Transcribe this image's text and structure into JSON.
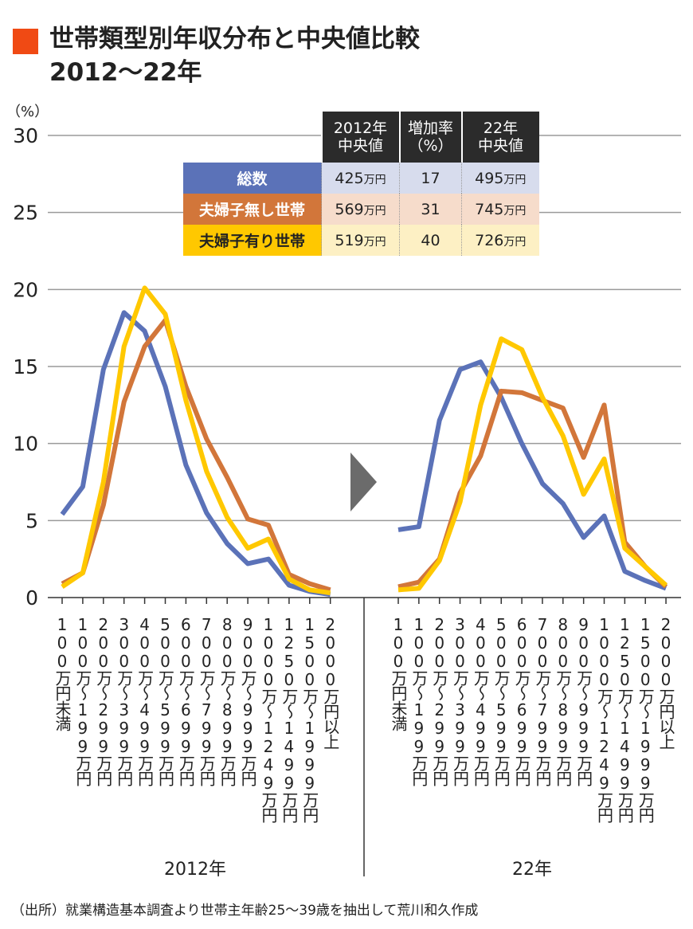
{
  "title_line1": "世帯類型別年収分布と中央値比較",
  "title_line2": "2012～22年",
  "source": "（出所）就業構造基本調査より世帯主年齢25～39歳を抽出して荒川和久作成",
  "colors": {
    "accent": "#f04a14",
    "total": "#5b72b8",
    "no_child": "#d2763a",
    "with_child": "#ffc800",
    "arrow": "#6b6b6b"
  },
  "table": {
    "headers": [
      [
        "2012年",
        "中央値"
      ],
      [
        "増加率",
        "（%）"
      ],
      [
        "22年",
        "中央値"
      ]
    ],
    "rows": [
      {
        "label": "総数",
        "v2012": "425",
        "rate": "17",
        "v2022": "495",
        "unit": "万円",
        "label_color": "#5b72b8",
        "bg": "#d7dced",
        "text": "#fff"
      },
      {
        "label": "夫婦子無し世帯",
        "v2012": "569",
        "rate": "31",
        "v2022": "745",
        "unit": "万円",
        "label_color": "#d2763a",
        "bg": "#f6dccb",
        "text": "#fff"
      },
      {
        "label": "夫婦子有り世帯",
        "v2012": "519",
        "rate": "40",
        "v2022": "726",
        "unit": "万円",
        "label_color": "#ffc800",
        "bg": "#fdf0c4",
        "text": "#222"
      }
    ]
  },
  "chart_data": {
    "type": "line",
    "ylabel": "（%）",
    "ylim": [
      0,
      30
    ],
    "yticks": [
      0,
      5,
      10,
      15,
      20,
      25,
      30
    ],
    "grid": true,
    "categories": [
      "100万円未満",
      "100万～199万円",
      "200万～299万円",
      "300万～399万円",
      "400万～499万円",
      "500万～599万円",
      "600万～699万円",
      "700万～799万円",
      "800万～899万円",
      "900万～999万円",
      "1000万～1249万円",
      "1250万～1499万円",
      "1500万～1999万円",
      "2000万円以上"
    ],
    "panels": [
      {
        "label": "2012年",
        "series": [
          {
            "name": "総数",
            "values": [
              5.4,
              7.2,
              14.8,
              18.5,
              17.3,
              13.7,
              8.6,
              5.5,
              3.5,
              2.2,
              2.5,
              0.8,
              0.4,
              0.2
            ]
          },
          {
            "name": "夫婦子無し世帯",
            "values": [
              0.9,
              1.6,
              6.0,
              12.7,
              16.3,
              18.0,
              13.7,
              10.3,
              7.8,
              5.1,
              4.7,
              1.5,
              0.9,
              0.5
            ]
          },
          {
            "name": "夫婦子有り世帯",
            "values": [
              0.7,
              1.6,
              7.5,
              16.3,
              20.1,
              18.4,
              12.8,
              8.2,
              5.2,
              3.2,
              3.8,
              1.2,
              0.5,
              0.3
            ]
          }
        ]
      },
      {
        "label": "22年",
        "series": [
          {
            "name": "総数",
            "values": [
              4.4,
              4.6,
              11.5,
              14.8,
              15.3,
              13.0,
              10.0,
              7.4,
              6.1,
              3.9,
              5.3,
              1.7,
              1.1,
              0.6
            ]
          },
          {
            "name": "夫婦子無し世帯",
            "values": [
              0.7,
              1.0,
              2.5,
              6.8,
              9.2,
              13.4,
              13.3,
              12.8,
              12.3,
              9.1,
              12.5,
              3.6,
              2.0,
              0.7
            ]
          },
          {
            "name": "夫婦子有り世帯",
            "values": [
              0.5,
              0.6,
              2.4,
              6.2,
              12.5,
              16.8,
              16.1,
              13.0,
              10.5,
              6.7,
              9.0,
              3.2,
              2.0,
              0.8
            ]
          }
        ]
      }
    ]
  }
}
